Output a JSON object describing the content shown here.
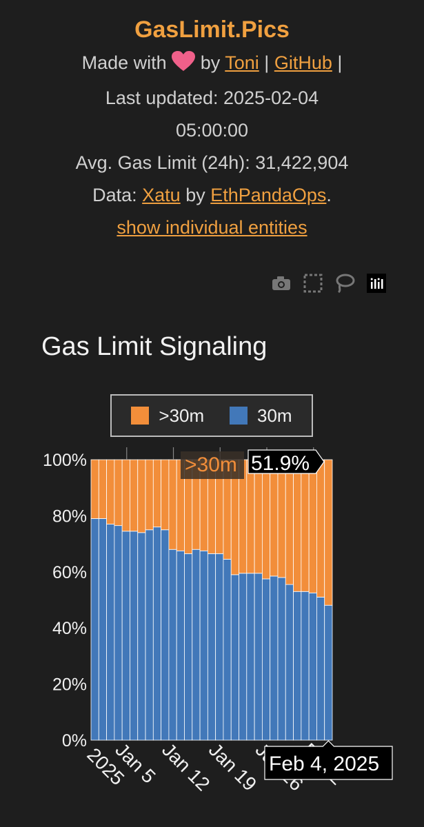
{
  "header": {
    "title": "GasLimit.Pics",
    "made_with": "Made with",
    "by": "by",
    "author": "Toni",
    "separator": "|",
    "github": "GitHub",
    "last_updated_line": "Last updated: 2025-02-04",
    "last_updated_time": "05:00:00",
    "avg_gas_limit": "Avg. Gas Limit (24h): 31,422,904",
    "data_label": "Data:",
    "data_source": "Xatu",
    "data_by": "by",
    "data_org": "EthPandaOps",
    "data_period": ".",
    "show_entities": "show individual entities"
  },
  "toolbar": {
    "icons": [
      "camera-icon",
      "box-select-icon",
      "lasso-select-icon",
      "plotly-logo-icon"
    ]
  },
  "colors": {
    "accent": "#f0a040",
    "above_30m": "#f28e3a",
    "at_30m": "#4278b9",
    "background": "#1e1e1e"
  },
  "chart_data": {
    "type": "bar",
    "stacked": true,
    "title": "Gas Limit Signaling",
    "x_start": "2024-12-31",
    "x_end": "2025-02-04",
    "x_ticks": [
      {
        "date": "2025-01-05",
        "lines": [
          "Jan 5",
          "2025"
        ]
      },
      {
        "date": "2025-01-12",
        "lines": [
          "Jan 12"
        ]
      },
      {
        "date": "2025-01-19",
        "lines": [
          "Jan 19"
        ]
      },
      {
        "date": "2025-01-26",
        "lines": [
          "Jan 26"
        ]
      },
      {
        "date": "2025-02-02",
        "lines": [
          "Feb 2"
        ]
      }
    ],
    "y_ticks": [
      "0%",
      "20%",
      "40%",
      "60%",
      "80%",
      "100%"
    ],
    "ylim": [
      0,
      100
    ],
    "legend": {
      "position": "top",
      "entries": [
        ">30m",
        "30m"
      ]
    },
    "series": [
      {
        "name": "30m",
        "values": [
          79,
          79,
          77,
          76.5,
          74.5,
          74.5,
          74,
          75,
          76,
          75,
          68,
          67.5,
          66.5,
          68,
          67.5,
          66.5,
          66.5,
          64.5,
          59,
          59.5,
          59.5,
          59.5,
          57.5,
          58.5,
          58,
          55.5,
          53,
          53,
          52.5,
          51,
          48.1
        ]
      },
      {
        "name": ">30m",
        "values": [
          21,
          21,
          23,
          23.5,
          25.5,
          25.5,
          26,
          25,
          24,
          25,
          32,
          32.5,
          33.5,
          32,
          32.5,
          33.5,
          33.5,
          35.5,
          41,
          40.5,
          40.5,
          40.5,
          42.5,
          41.5,
          42,
          44.5,
          47,
          47,
          47.5,
          49,
          51.9
        ]
      }
    ],
    "hover": {
      "series": ">30m",
      "value": "51.9%",
      "date_label": "Feb 4, 2025"
    }
  }
}
